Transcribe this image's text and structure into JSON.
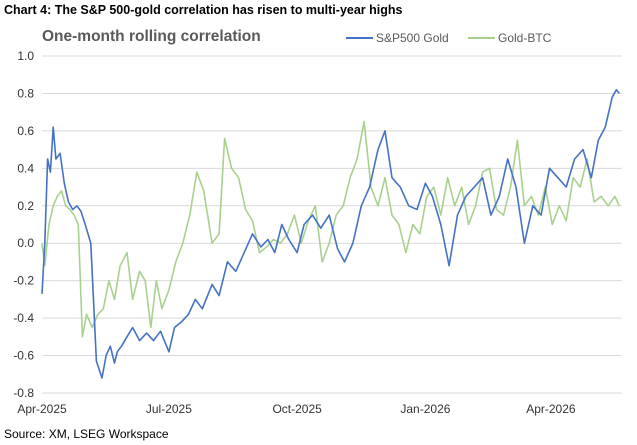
{
  "header": "Chart 4: The S&P 500-gold correlation has risen to multi-year highs",
  "source": "Source: XM, LSEG Workspace",
  "chart_data": {
    "type": "line",
    "title": "One-month rolling correlation",
    "xlabel": "",
    "ylabel": "",
    "ylim": [
      -0.8,
      1.0
    ],
    "yticks": [
      "-0.8",
      "-0.6",
      "-0.4",
      "-0.2",
      "0.0",
      "0.2",
      "0.4",
      "0.6",
      "0.8",
      "1.0"
    ],
    "xticks": [
      "Apr-2025",
      "Jul-2025",
      "Oct-2025",
      "Jan-2026",
      "Apr-2026"
    ],
    "grid": true,
    "legend": "top-right",
    "colors": {
      "sp500_gold": "#4472c4",
      "gold_btc": "#a9d18e",
      "grid": "#d9d9d9"
    },
    "series": [
      {
        "name": "S&P500 Gold",
        "x": [
          "2025-04-01",
          "2025-04-03",
          "2025-04-05",
          "2025-04-07",
          "2025-04-09",
          "2025-04-11",
          "2025-04-14",
          "2025-04-17",
          "2025-04-20",
          "2025-04-23",
          "2025-04-26",
          "2025-04-29",
          "2025-05-02",
          "2025-05-06",
          "2025-05-10",
          "2025-05-14",
          "2025-05-17",
          "2025-05-20",
          "2025-05-23",
          "2025-05-25",
          "2025-05-28",
          "2025-06-01",
          "2025-06-05",
          "2025-06-10",
          "2025-06-15",
          "2025-06-20",
          "2025-06-25",
          "2025-07-01",
          "2025-07-05",
          "2025-07-10",
          "2025-07-15",
          "2025-07-20",
          "2025-07-25",
          "2025-08-01",
          "2025-08-06",
          "2025-08-12",
          "2025-08-18",
          "2025-08-24",
          "2025-08-30",
          "2025-09-05",
          "2025-09-10",
          "2025-09-15",
          "2025-09-20",
          "2025-09-25",
          "2025-10-01",
          "2025-10-06",
          "2025-10-12",
          "2025-10-18",
          "2025-10-24",
          "2025-10-30",
          "2025-11-04",
          "2025-11-10",
          "2025-11-16",
          "2025-11-22",
          "2025-11-28",
          "2025-12-03",
          "2025-12-08",
          "2025-12-14",
          "2025-12-20",
          "2025-12-26",
          "2026-01-01",
          "2026-01-06",
          "2026-01-12",
          "2026-01-18",
          "2026-01-24",
          "2026-01-30",
          "2026-02-05",
          "2026-02-11",
          "2026-02-17",
          "2026-02-23",
          "2026-03-01",
          "2026-03-07",
          "2026-03-13",
          "2026-03-19",
          "2026-03-25",
          "2026-03-31",
          "2026-04-06",
          "2026-04-12",
          "2026-04-18",
          "2026-04-24",
          "2026-04-30",
          "2026-05-05",
          "2026-05-10",
          "2026-05-15",
          "2026-05-18",
          "2026-05-20"
        ],
        "values": [
          -0.27,
          0.0,
          0.45,
          0.38,
          0.62,
          0.45,
          0.48,
          0.32,
          0.22,
          0.18,
          0.2,
          0.17,
          0.1,
          0.0,
          -0.63,
          -0.72,
          -0.6,
          -0.55,
          -0.64,
          -0.58,
          -0.55,
          -0.5,
          -0.45,
          -0.52,
          -0.48,
          -0.52,
          -0.47,
          -0.58,
          -0.45,
          -0.42,
          -0.38,
          -0.3,
          -0.35,
          -0.22,
          -0.28,
          -0.1,
          -0.15,
          -0.05,
          0.05,
          -0.02,
          0.02,
          -0.05,
          0.1,
          0.02,
          -0.05,
          0.1,
          0.15,
          0.08,
          0.15,
          -0.03,
          -0.1,
          0.0,
          0.2,
          0.3,
          0.5,
          0.6,
          0.35,
          0.3,
          0.2,
          0.18,
          0.32,
          0.25,
          0.1,
          -0.12,
          0.15,
          0.25,
          0.3,
          0.35,
          0.15,
          0.25,
          0.45,
          0.3,
          0.0,
          0.2,
          0.15,
          0.4,
          0.35,
          0.3,
          0.45,
          0.5,
          0.35,
          0.55,
          0.62,
          0.78,
          0.82,
          0.8
        ]
      },
      {
        "name": "Gold-BTC",
        "x": [
          "2025-04-01",
          "2025-04-03",
          "2025-04-06",
          "2025-04-09",
          "2025-04-12",
          "2025-04-15",
          "2025-04-18",
          "2025-04-21",
          "2025-04-24",
          "2025-04-27",
          "2025-04-30",
          "2025-05-03",
          "2025-05-07",
          "2025-05-11",
          "2025-05-15",
          "2025-05-19",
          "2025-05-23",
          "2025-05-27",
          "2025-06-01",
          "2025-06-05",
          "2025-06-10",
          "2025-06-14",
          "2025-06-18",
          "2025-06-22",
          "2025-06-26",
          "2025-07-01",
          "2025-07-06",
          "2025-07-11",
          "2025-07-16",
          "2025-07-21",
          "2025-07-26",
          "2025-08-01",
          "2025-08-06",
          "2025-08-10",
          "2025-08-15",
          "2025-08-20",
          "2025-08-25",
          "2025-08-30",
          "2025-09-04",
          "2025-09-09",
          "2025-09-14",
          "2025-09-19",
          "2025-09-24",
          "2025-09-29",
          "2025-10-04",
          "2025-10-09",
          "2025-10-14",
          "2025-10-19",
          "2025-10-24",
          "2025-10-29",
          "2025-11-03",
          "2025-11-08",
          "2025-11-13",
          "2025-11-18",
          "2025-11-23",
          "2025-11-28",
          "2025-12-03",
          "2025-12-08",
          "2025-12-13",
          "2025-12-18",
          "2025-12-23",
          "2025-12-28",
          "2026-01-02",
          "2026-01-07",
          "2026-01-12",
          "2026-01-17",
          "2026-01-22",
          "2026-01-27",
          "2026-02-01",
          "2026-02-06",
          "2026-02-11",
          "2026-02-16",
          "2026-02-21",
          "2026-02-26",
          "2026-03-03",
          "2026-03-08",
          "2026-03-13",
          "2026-03-18",
          "2026-03-23",
          "2026-03-28",
          "2026-04-02",
          "2026-04-07",
          "2026-04-12",
          "2026-04-17",
          "2026-04-22",
          "2026-04-27",
          "2026-05-02",
          "2026-05-07",
          "2026-05-12",
          "2026-05-17",
          "2026-05-20"
        ],
        "values": [
          0.0,
          -0.12,
          0.1,
          0.2,
          0.25,
          0.28,
          0.2,
          0.18,
          0.15,
          0.1,
          -0.5,
          -0.38,
          -0.45,
          -0.38,
          -0.35,
          -0.2,
          -0.3,
          -0.12,
          -0.05,
          -0.3,
          -0.15,
          -0.2,
          -0.45,
          -0.2,
          -0.35,
          -0.25,
          -0.1,
          0.0,
          0.15,
          0.38,
          0.28,
          0.0,
          0.05,
          0.56,
          0.4,
          0.35,
          0.18,
          0.12,
          -0.05,
          -0.02,
          0.02,
          0.0,
          0.05,
          0.15,
          0.0,
          0.12,
          0.2,
          -0.1,
          0.0,
          0.15,
          0.2,
          0.35,
          0.45,
          0.65,
          0.3,
          0.2,
          0.35,
          0.15,
          0.1,
          -0.05,
          0.1,
          0.05,
          0.25,
          0.3,
          0.15,
          0.35,
          0.2,
          0.3,
          0.1,
          0.2,
          0.38,
          0.4,
          0.18,
          0.15,
          0.3,
          0.55,
          0.2,
          0.25,
          0.15,
          0.3,
          0.1,
          0.2,
          0.12,
          0.35,
          0.3,
          0.45,
          0.22,
          0.25,
          0.2,
          0.25,
          0.2
        ]
      }
    ]
  }
}
